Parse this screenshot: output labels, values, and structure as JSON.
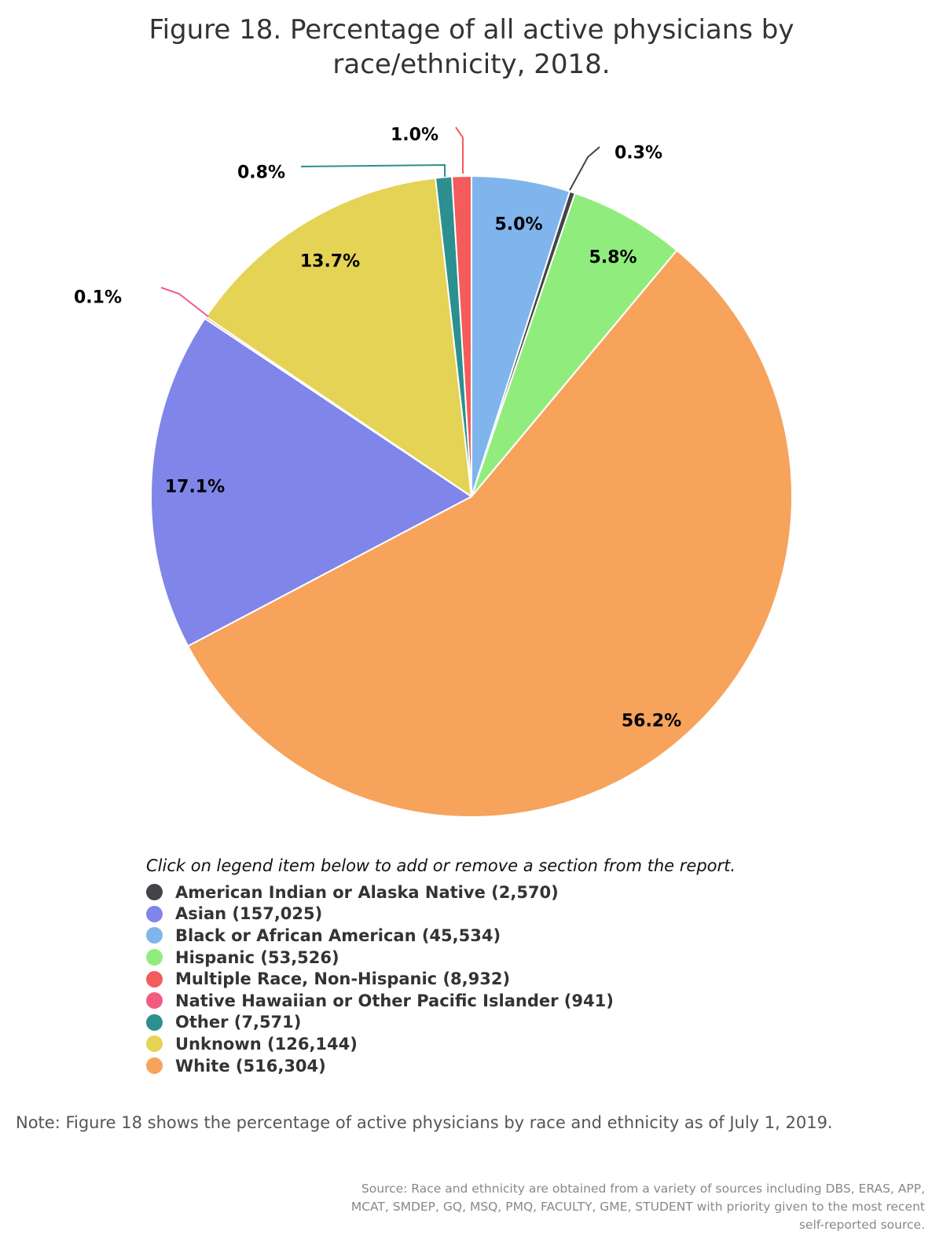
{
  "chart_data": {
    "type": "pie",
    "title": [
      "Figure 18. Percentage of all active physicians by",
      "race/ethnicity, 2018."
    ],
    "legend_instruction": "Click on legend item below to add or remove a section from the report.",
    "slices": [
      {
        "category": "Black or African American",
        "count": 45534,
        "percent_label": "5.0%",
        "color": "#7fb5ec"
      },
      {
        "category": "American Indian or Alaska Native",
        "count": 2570,
        "percent_label": "0.3%",
        "color": "#434348"
      },
      {
        "category": "Hispanic",
        "count": 53526,
        "percent_label": "5.8%",
        "color": "#90ed7d"
      },
      {
        "category": "White",
        "count": 516304,
        "percent_label": "56.2%",
        "color": "#f7a35c"
      },
      {
        "category": "Asian",
        "count": 157025,
        "percent_label": "17.1%",
        "color": "#8085e9"
      },
      {
        "category": "Native Hawaiian or Other Pacific Islander",
        "count": 941,
        "percent_label": "0.1%",
        "color": "#f15c80"
      },
      {
        "category": "Unknown",
        "count": 126144,
        "percent_label": "13.7%",
        "color": "#e4d354"
      },
      {
        "category": "Other",
        "count": 7571,
        "percent_label": "0.8%",
        "color": "#2b908f"
      },
      {
        "category": "Multiple Race, Non-Hispanic",
        "count": 8932,
        "percent_label": "1.0%",
        "color": "#f45b5b"
      }
    ],
    "legend": [
      {
        "label": "American Indian or Alaska Native (2,570)",
        "color": "#434348"
      },
      {
        "label": "Asian (157,025)",
        "color": "#8085e9"
      },
      {
        "label": "Black or African American (45,534)",
        "color": "#7fb5ec"
      },
      {
        "label": "Hispanic (53,526)",
        "color": "#90ed7d"
      },
      {
        "label": "Multiple Race, Non-Hispanic (8,932)",
        "color": "#f45b5b"
      },
      {
        "label": "Native Hawaiian or Other Pacific Islander (941)",
        "color": "#f15c80"
      },
      {
        "label": "Other (7,571)",
        "color": "#2b908f"
      },
      {
        "label": "Unknown (126,144)",
        "color": "#e4d354"
      },
      {
        "label": "White (516,304)",
        "color": "#f7a35c"
      }
    ]
  },
  "note": "Note: Figure 18 shows the percentage of active physicians by race and ethnicity as of July 1, 2019.",
  "source": "Source: Race and ethnicity are obtained from a variety of sources including DBS, ERAS, APP, MCAT, SMDEP, GQ, MSQ, PMQ, FACULTY, GME, STUDENT with priority given to the most recent self-reported source."
}
